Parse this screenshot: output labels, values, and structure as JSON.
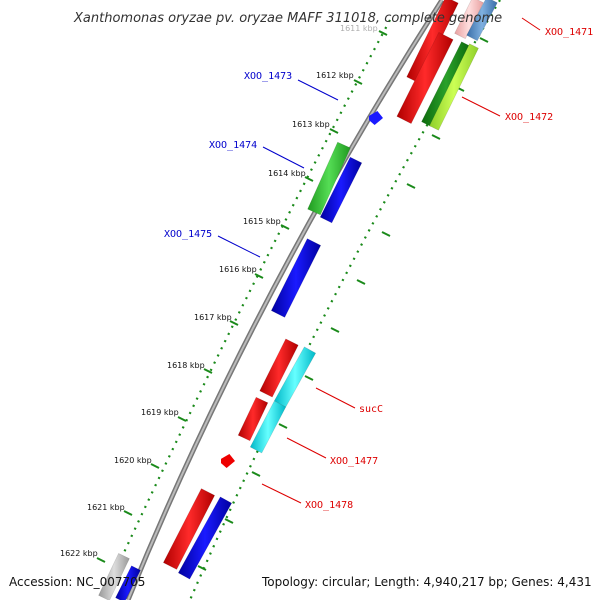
{
  "title": "Xanthomonas oryzae pv. oryzae MAFF 311018, complete genome",
  "footer": {
    "accession": "Accession: NC_007705",
    "summary": "Topology: circular; Length: 4,940,217 bp; Genes: 4,431"
  },
  "ticks": [
    "1611 kbp",
    "1612 kbp",
    "1613 kbp",
    "1614 kbp",
    "1615 kbp",
    "1616 kbp",
    "1617 kbp",
    "1618 kbp",
    "1619 kbp",
    "1620 kbp",
    "1621 kbp",
    "1622 kbp"
  ],
  "gene_labels": [
    "XOO_1471",
    "XOO_1472",
    "XOO_1473",
    "XOO_1474",
    "XOO_1475",
    "sucC",
    "XOO_1477",
    "XOO_1478"
  ],
  "colors": {
    "label_blue": "#0000cc",
    "label_red": "#dd0000",
    "tick_green": "#1a8a1a",
    "backbone": "#888888",
    "cog_red": "#ff0000",
    "cog_blue": "#0000ff",
    "cog_green": "#33cc33",
    "cog_cyan": "#00ffff",
    "cog_steelblue": "#4f86c6"
  }
}
